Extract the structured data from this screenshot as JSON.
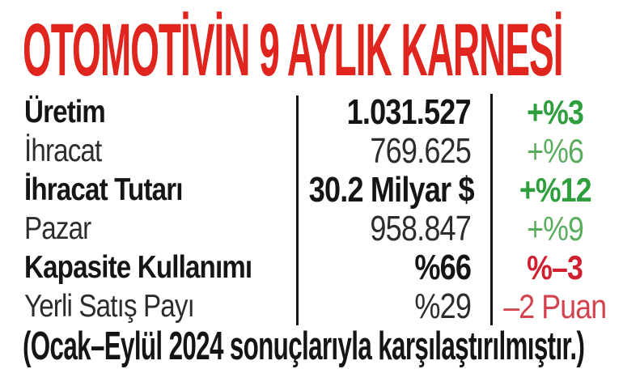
{
  "title": "OTOMOTİVİN 9 AYLIK KARNESİ",
  "footer_note": "(Ocak–Eylül 2024 sonuçlarıyla karşılaştırılmıştır.)",
  "colors": {
    "title_red": "#e0251f",
    "positive_bold": "#2f9e3d",
    "positive_light": "#5bad5e",
    "negative_bold": "#d02030",
    "negative_light": "#d4424e",
    "text_dark": "#171513",
    "text_regular": "#2e2c2b",
    "divider": "#161616",
    "background": "#ffffff"
  },
  "chart_data": {
    "type": "table",
    "title": "OTOMOTİVİN 9 AYLIK KARNESİ",
    "note": "(Ocak–Eylül 2024 sonuçlarıyla karşılaştırılmıştır.)",
    "rows": [
      {
        "label": "Üretim",
        "value": "1.031.527",
        "change": "+%3",
        "trend": "up",
        "emphasis": true
      },
      {
        "label": "İhracat",
        "value": "769.625",
        "change": "+%6",
        "trend": "up",
        "emphasis": false
      },
      {
        "label": "İhracat Tutarı",
        "value": "30.2 Milyar $",
        "change": "+%12",
        "trend": "up",
        "emphasis": true
      },
      {
        "label": "Pazar",
        "value": "958.847",
        "change": "+%9",
        "trend": "up",
        "emphasis": false
      },
      {
        "label": "Kapasite Kullanımı",
        "value": "%66",
        "change": "%–3",
        "trend": "down",
        "emphasis": true
      },
      {
        "label": "Yerli Satış Payı",
        "value": "%29",
        "change": "–2 Puan",
        "trend": "down",
        "emphasis": false
      }
    ]
  }
}
